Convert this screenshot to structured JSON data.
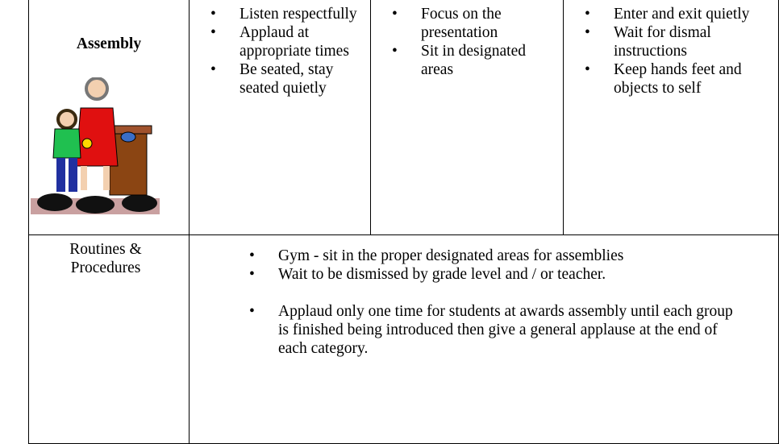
{
  "rows": [
    {
      "heading": "Assembly",
      "columns": [
        [
          "Listen respectfully",
          "Applaud at appropriate times",
          "Be seated, stay seated quietly"
        ],
        [
          "Focus on the presentation",
          "Sit in designated areas"
        ],
        [
          "Enter and exit quietly",
          "Wait for dismal instructions",
          "Keep hands feet and objects to self"
        ]
      ]
    },
    {
      "heading": "Routines & Procedures",
      "items": [
        "Gym - sit in the proper designated areas for assemblies",
        "Wait to be dismissed by grade level and / or teacher.",
        "Applaud only one time for students at awards assembly until each group is finished being introduced then give a general applause at the end of each category."
      ]
    }
  ]
}
